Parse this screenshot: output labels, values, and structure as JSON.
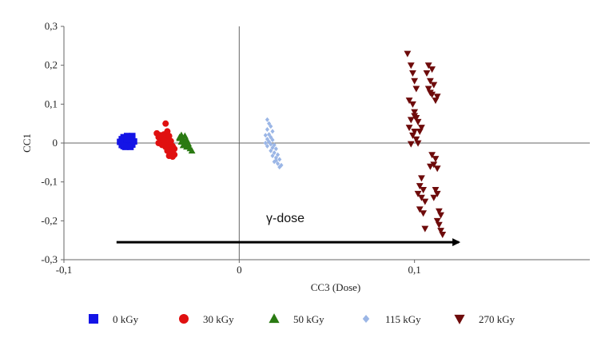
{
  "chart_data": {
    "type": "scatter",
    "title": "",
    "xlabel": "CC3 (Dose)",
    "ylabel": "CC1",
    "xlim": [
      -0.1,
      0.2
    ],
    "ylim": [
      -0.3,
      0.3
    ],
    "x_ticks": [
      -0.1,
      0,
      0.1
    ],
    "x_tick_labels": [
      "-0,1",
      "0",
      "0,1"
    ],
    "y_ticks": [
      0.3,
      0.2,
      0.1,
      0,
      -0.1,
      -0.2,
      -0.3
    ],
    "y_tick_labels": [
      "0,3",
      "0,2",
      "0,1",
      "0",
      "-0,1",
      "-0,2",
      "-0,3"
    ],
    "grid": false,
    "zero_lines": true,
    "legend_position": "bottom",
    "annotation": {
      "text": "γ-dose",
      "arrow_from": [
        -0.07,
        -0.255
      ],
      "arrow_to": [
        0.128,
        -0.255
      ]
    },
    "series": [
      {
        "name": "0 kGy",
        "marker": "square",
        "color": "#1414e6",
        "points": [
          [
            -0.066,
            0.015
          ],
          [
            -0.064,
            0.018
          ],
          [
            -0.062,
            0.016
          ],
          [
            -0.067,
            0.01
          ],
          [
            -0.063,
            0.008
          ],
          [
            -0.061,
            0.012
          ],
          [
            -0.065,
            0.005
          ],
          [
            -0.066,
            0.0
          ],
          [
            -0.062,
            0.0
          ],
          [
            -0.064,
            -0.002
          ],
          [
            -0.067,
            -0.005
          ],
          [
            -0.061,
            -0.004
          ],
          [
            -0.063,
            -0.008
          ],
          [
            -0.065,
            -0.01
          ],
          [
            -0.06,
            0.004
          ],
          [
            -0.068,
            0.003
          ],
          [
            -0.064,
            0.01
          ],
          [
            -0.062,
            -0.01
          ],
          [
            -0.066,
            -0.008
          ],
          [
            -0.061,
            0.018
          ]
        ]
      },
      {
        "name": "30 kGy",
        "marker": "circle",
        "color": "#e01010",
        "points": [
          [
            -0.042,
            0.05
          ],
          [
            -0.047,
            0.025
          ],
          [
            -0.045,
            0.02
          ],
          [
            -0.043,
            0.022
          ],
          [
            -0.041,
            0.03
          ],
          [
            -0.046,
            0.015
          ],
          [
            -0.044,
            0.01
          ],
          [
            -0.042,
            0.012
          ],
          [
            -0.04,
            0.018
          ],
          [
            -0.045,
            0.005
          ],
          [
            -0.043,
            0.0
          ],
          [
            -0.041,
            -0.002
          ],
          [
            -0.039,
            0.005
          ],
          [
            -0.044,
            -0.005
          ],
          [
            -0.042,
            -0.01
          ],
          [
            -0.04,
            -0.012
          ],
          [
            -0.038,
            -0.008
          ],
          [
            -0.041,
            -0.02
          ],
          [
            -0.039,
            -0.025
          ],
          [
            -0.037,
            -0.03
          ],
          [
            -0.04,
            -0.033
          ],
          [
            -0.038,
            -0.035
          ],
          [
            -0.046,
            0.0
          ],
          [
            -0.037,
            -0.015
          ],
          [
            -0.043,
            0.007
          ]
        ]
      },
      {
        "name": "50 kGy",
        "marker": "triangle-up",
        "color": "#2a7a12",
        "points": [
          [
            -0.033,
            0.02
          ],
          [
            -0.031,
            0.018
          ],
          [
            -0.034,
            0.012
          ],
          [
            -0.032,
            0.01
          ],
          [
            -0.03,
            0.008
          ],
          [
            -0.033,
            0.003
          ],
          [
            -0.031,
            0.0
          ],
          [
            -0.029,
            -0.002
          ],
          [
            -0.032,
            -0.006
          ],
          [
            -0.03,
            -0.01
          ],
          [
            -0.028,
            -0.014
          ],
          [
            -0.027,
            -0.02
          ],
          [
            -0.03,
            -0.004
          ],
          [
            -0.034,
            0.015
          ]
        ]
      },
      {
        "name": "115 kGy",
        "marker": "diamond",
        "color": "#9bb6e6",
        "points": [
          [
            0.016,
            0.06
          ],
          [
            0.017,
            0.05
          ],
          [
            0.018,
            0.043
          ],
          [
            0.016,
            0.035
          ],
          [
            0.019,
            0.03
          ],
          [
            0.017,
            0.022
          ],
          [
            0.015,
            0.02
          ],
          [
            0.018,
            0.015
          ],
          [
            0.016,
            0.01
          ],
          [
            0.019,
            0.008
          ],
          [
            0.017,
            0.003
          ],
          [
            0.015,
            0.0
          ],
          [
            0.018,
            -0.003
          ],
          [
            0.02,
            -0.005
          ],
          [
            0.016,
            -0.008
          ],
          [
            0.019,
            -0.012
          ],
          [
            0.021,
            -0.015
          ],
          [
            0.018,
            -0.02
          ],
          [
            0.02,
            -0.025
          ],
          [
            0.022,
            -0.03
          ],
          [
            0.019,
            -0.033
          ],
          [
            0.021,
            -0.038
          ],
          [
            0.023,
            -0.042
          ],
          [
            0.02,
            -0.048
          ],
          [
            0.022,
            -0.053
          ],
          [
            0.024,
            -0.057
          ],
          [
            0.023,
            -0.062
          ],
          [
            0.021,
            -0.045
          ]
        ]
      },
      {
        "name": "270 kGy",
        "marker": "triangle-down",
        "color": "#6e0b0b",
        "points": [
          [
            0.096,
            0.23
          ],
          [
            0.098,
            0.2
          ],
          [
            0.099,
            0.18
          ],
          [
            0.1,
            0.16
          ],
          [
            0.101,
            0.14
          ],
          [
            0.097,
            0.11
          ],
          [
            0.099,
            0.1
          ],
          [
            0.1,
            0.08
          ],
          [
            0.101,
            0.065
          ],
          [
            0.102,
            0.055
          ],
          [
            0.098,
            0.06
          ],
          [
            0.097,
            0.04
          ],
          [
            0.1,
            0.03
          ],
          [
            0.103,
            0.03
          ],
          [
            0.104,
            0.04
          ],
          [
            0.099,
            0.02
          ],
          [
            0.101,
            0.01
          ],
          [
            0.102,
            0.0
          ],
          [
            0.098,
            -0.002
          ],
          [
            0.1,
            0.07
          ],
          [
            0.108,
            0.2
          ],
          [
            0.11,
            0.19
          ],
          [
            0.107,
            0.18
          ],
          [
            0.109,
            0.16
          ],
          [
            0.111,
            0.15
          ],
          [
            0.108,
            0.14
          ],
          [
            0.11,
            0.125
          ],
          [
            0.112,
            0.11
          ],
          [
            0.109,
            0.13
          ],
          [
            0.113,
            0.12
          ],
          [
            0.11,
            -0.03
          ],
          [
            0.112,
            -0.04
          ],
          [
            0.111,
            -0.055
          ],
          [
            0.109,
            -0.06
          ],
          [
            0.113,
            -0.065
          ],
          [
            0.104,
            -0.09
          ],
          [
            0.103,
            -0.11
          ],
          [
            0.105,
            -0.12
          ],
          [
            0.102,
            -0.13
          ],
          [
            0.104,
            -0.14
          ],
          [
            0.106,
            -0.15
          ],
          [
            0.112,
            -0.12
          ],
          [
            0.113,
            -0.13
          ],
          [
            0.111,
            -0.14
          ],
          [
            0.103,
            -0.17
          ],
          [
            0.105,
            -0.18
          ],
          [
            0.114,
            -0.175
          ],
          [
            0.115,
            -0.185
          ],
          [
            0.113,
            -0.2
          ],
          [
            0.114,
            -0.21
          ],
          [
            0.106,
            -0.22
          ],
          [
            0.115,
            -0.225
          ],
          [
            0.116,
            -0.235
          ]
        ]
      }
    ]
  }
}
